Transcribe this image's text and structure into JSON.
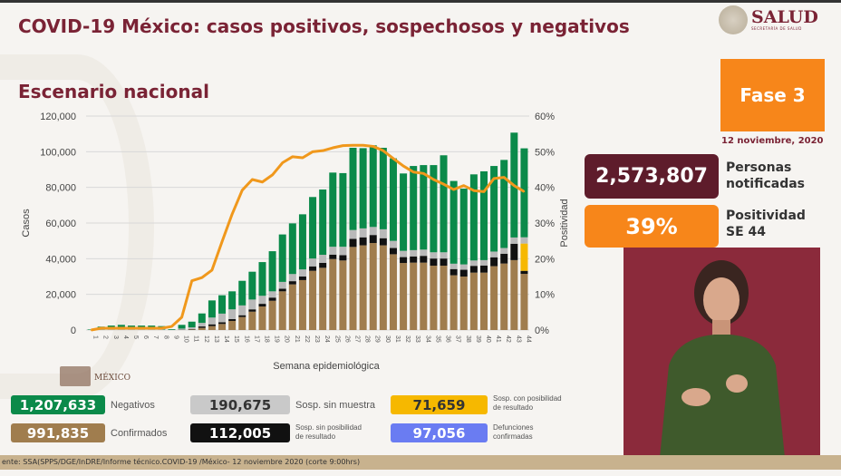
{
  "header": {
    "title": "COVID-19 México: casos positivos, sospechosos y negativos",
    "subtitle": "Escenario nacional",
    "logo_text": "SALUD",
    "logo_subtext": "SECRETARÍA DE SALUD"
  },
  "side": {
    "fase": "Fase 3",
    "fecha": "12 noviembre, 2020",
    "notificadas_value": "2,573,807",
    "notificadas_label_1": "Personas",
    "notificadas_label_2": "notificadas",
    "positividad_value": "39%",
    "positividad_label_1": "Positividad",
    "positividad_label_2": "SE 44"
  },
  "legend": {
    "negativos_value": "1,207,633",
    "negativos_label": "Negativos",
    "sin_muestra_value": "190,675",
    "sin_muestra_label": "Sosp. sin muestra",
    "con_posibilidad_value": "71,659",
    "con_posibilidad_label_1": "Sosp. con posibilidad",
    "con_posibilidad_label_2": "de resultado",
    "confirmados_value": "991,835",
    "confirmados_label": "Confirmados",
    "sin_posibilidad_value": "112,005",
    "sin_posibilidad_label_1": "Sosp. sin posibilidad",
    "sin_posibilidad_label_2": "de resultado",
    "defunciones_value": "97,056",
    "defunciones_label_1": "Defunciones",
    "defunciones_label_2": "confirmadas",
    "mexico_mark": "MÉXICO"
  },
  "footer": {
    "source": "ente: SSA(SPPS/DGE/InDRE/Informe técnico.COVID-19 /México- 12 noviembre 2020 (corte 9:00hrs)"
  },
  "colors": {
    "confirmados": "#a07d4e",
    "sin_posibilidad": "#111111",
    "con_posibilidad": "#f6b800",
    "sin_muestra": "#b9b9b9",
    "negativos": "#0b8a4a",
    "positividad": "#f0981c",
    "defunciones": "#6a7cf2",
    "brand": "#7a2335"
  },
  "chart_data": {
    "type": "bar",
    "stacked": true,
    "xlabel": "Semana epidemiológica",
    "ylabel": "Casos",
    "y2label": "Positividad",
    "ylim": [
      0,
      120000
    ],
    "y2lim": [
      0,
      60
    ],
    "yticks": [
      "0",
      "20,000",
      "40,000",
      "60,000",
      "80,000",
      "100,000",
      "120,000"
    ],
    "y2ticks": [
      "0%",
      "10%",
      "20%",
      "30%",
      "40%",
      "50%",
      "60%"
    ],
    "grid": true,
    "categories": [
      "1",
      "2",
      "3",
      "4",
      "5",
      "6",
      "7",
      "8",
      "9",
      "10",
      "11",
      "12",
      "13",
      "14",
      "15",
      "16",
      "17",
      "18",
      "19",
      "20",
      "21",
      "22",
      "23",
      "24",
      "25",
      "26",
      "27",
      "28",
      "29",
      "30",
      "31",
      "32",
      "33",
      "34",
      "35",
      "36",
      "37",
      "38",
      "39",
      "40",
      "41",
      "42",
      "43",
      "44"
    ],
    "series": [
      {
        "name": "Confirmados",
        "values": [
          0,
          0,
          0,
          0,
          0,
          0,
          0,
          0,
          0,
          100,
          300,
          1200,
          2200,
          3400,
          5100,
          7300,
          10300,
          13200,
          16400,
          21700,
          25600,
          28000,
          33200,
          34900,
          39800,
          39000,
          46600,
          47500,
          48800,
          47500,
          42500,
          37600,
          37800,
          37800,
          36100,
          36100,
          30700,
          30000,
          32200,
          32200,
          35800,
          37300,
          39200,
          31500
        ]
      },
      {
        "name": "Sosp. sin posibilidad de resultado",
        "values": [
          0,
          0,
          0,
          0,
          0,
          0,
          0,
          0,
          0,
          100,
          200,
          800,
          1000,
          1000,
          1000,
          1000,
          1300,
          1500,
          1800,
          1500,
          1800,
          2000,
          2500,
          2800,
          2500,
          3000,
          4500,
          4500,
          4500,
          4000,
          3500,
          3300,
          3500,
          3800,
          4000,
          4000,
          3500,
          3800,
          3800,
          4000,
          5000,
          5500,
          9200,
          1700
        ]
      },
      {
        "name": "Sosp. con posibilidad de resultado",
        "values": [
          0,
          0,
          0,
          0,
          0,
          0,
          0,
          0,
          0,
          0,
          0,
          0,
          0,
          0,
          0,
          0,
          0,
          0,
          0,
          0,
          0,
          0,
          0,
          0,
          0,
          0,
          0,
          0,
          0,
          0,
          0,
          0,
          0,
          0,
          0,
          0,
          0,
          0,
          0,
          0,
          0,
          0,
          0,
          15300
        ]
      },
      {
        "name": "Sosp. sin muestra",
        "values": [
          0,
          200,
          300,
          300,
          300,
          300,
          300,
          300,
          100,
          600,
          1000,
          2000,
          3800,
          4800,
          5500,
          5500,
          5500,
          4500,
          3500,
          3800,
          4000,
          4000,
          4400,
          4500,
          4400,
          4700,
          5000,
          5000,
          4500,
          5000,
          4000,
          3500,
          3500,
          3500,
          3500,
          3500,
          3000,
          3000,
          3000,
          3000,
          3200,
          3200,
          3500,
          3500
        ]
      },
      {
        "name": "Negativos",
        "values": [
          300,
          1700,
          2200,
          2600,
          2200,
          2200,
          2200,
          1900,
          400,
          2100,
          3200,
          5300,
          9600,
          10300,
          10100,
          13800,
          15600,
          18900,
          22500,
          26600,
          28400,
          30900,
          34500,
          36600,
          41600,
          41300,
          46100,
          45000,
          45800,
          45700,
          46300,
          43400,
          47200,
          47400,
          48900,
          54400,
          46400,
          42500,
          48300,
          49800,
          48000,
          49400,
          58800,
          49900
        ]
      }
    ],
    "line": {
      "axis": "right",
      "values": [
        0,
        0.5,
        0.5,
        0.5,
        0.5,
        0.5,
        0.5,
        0.5,
        1,
        3.6,
        13.8,
        14.7,
        16.8,
        24.8,
        32.5,
        39.2,
        42.2,
        41.5,
        43.5,
        46.9,
        48.6,
        48.3,
        50,
        50.3,
        51.1,
        51.7,
        51.8,
        51.8,
        51.5,
        50.3,
        48.1,
        46,
        44.3,
        43.9,
        42.2,
        40.9,
        39.4,
        40.5,
        39.1,
        38.8,
        42.5,
        42.8,
        40.5,
        38.8
      ]
    }
  }
}
